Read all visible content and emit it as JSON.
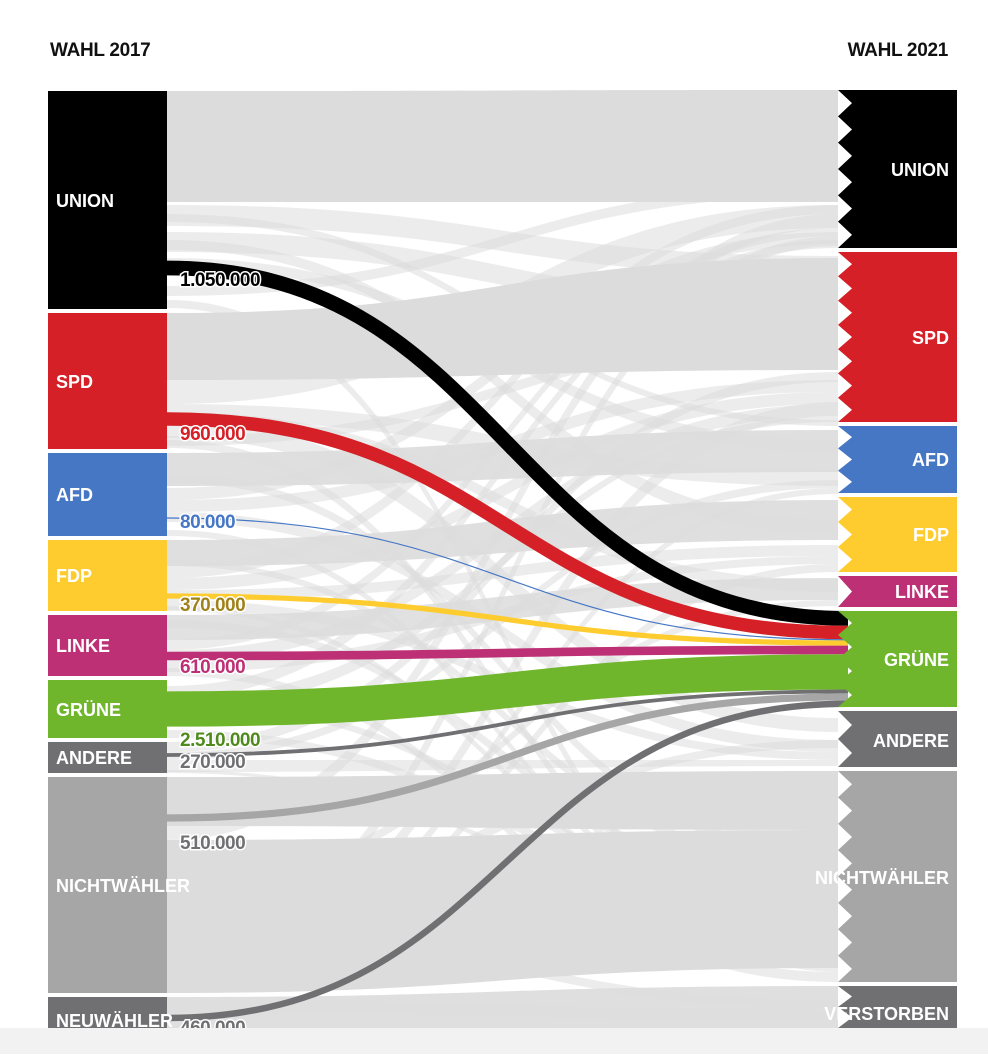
{
  "headers": {
    "left": "WAHL 2017",
    "right": "WAHL 2021"
  },
  "colors": {
    "UNION": "#000000",
    "SPD": "#d42026",
    "AFD": "#4677c5",
    "FDP": "#fecc2f",
    "LINKE": "#be3075",
    "GRÜNE": "#6fb62c",
    "ANDERE": "#707073",
    "NICHTWÄHLER": "#a6a6a6",
    "NEUWÄHLER": "#707073",
    "VERSTORBEN": "#707073",
    "background_flow": "#dcdcdc"
  },
  "left_nodes": [
    "UNION",
    "SPD",
    "AFD",
    "FDP",
    "LINKE",
    "GRÜNE",
    "ANDERE",
    "NICHTWÄHLER",
    "NEUWÄHLER"
  ],
  "right_nodes": [
    "UNION",
    "SPD",
    "AFD",
    "FDP",
    "LINKE",
    "GRÜNE",
    "ANDERE",
    "NICHTWÄHLER",
    "VERSTORBEN"
  ],
  "flows_to_gruene": [
    {
      "from": "UNION",
      "label": "1.050.000",
      "value": 1050000,
      "color": "#000000",
      "label_color": "#000000"
    },
    {
      "from": "SPD",
      "label": "960.000",
      "value": 960000,
      "color": "#d42026",
      "label_color": "#d42026"
    },
    {
      "from": "AFD",
      "label": "80.000",
      "value": 80000,
      "color": "#4677c5",
      "label_color": "#4677c5"
    },
    {
      "from": "FDP",
      "label": "370.000",
      "value": 370000,
      "color": "#fecc2f",
      "label_color": "#a0821a"
    },
    {
      "from": "LINKE",
      "label": "610.000",
      "value": 610000,
      "color": "#be3075",
      "label_color": "#be3075"
    },
    {
      "from": "GRÜNE",
      "label": "2.510.000",
      "value": 2510000,
      "color": "#6fb62c",
      "label_color": "#4f8a1c"
    },
    {
      "from": "ANDERE",
      "label": "270.000",
      "value": 270000,
      "color": "#707073",
      "label_color": "#707073"
    },
    {
      "from": "NICHTWÄHLER",
      "label": "510.000",
      "value": 510000,
      "color": "#a6a6a6",
      "label_color": "#707073"
    },
    {
      "from": "NEUWÄHLER",
      "label": "460.000",
      "value": 460000,
      "color": "#707073",
      "label_color": "#707073"
    }
  ]
}
